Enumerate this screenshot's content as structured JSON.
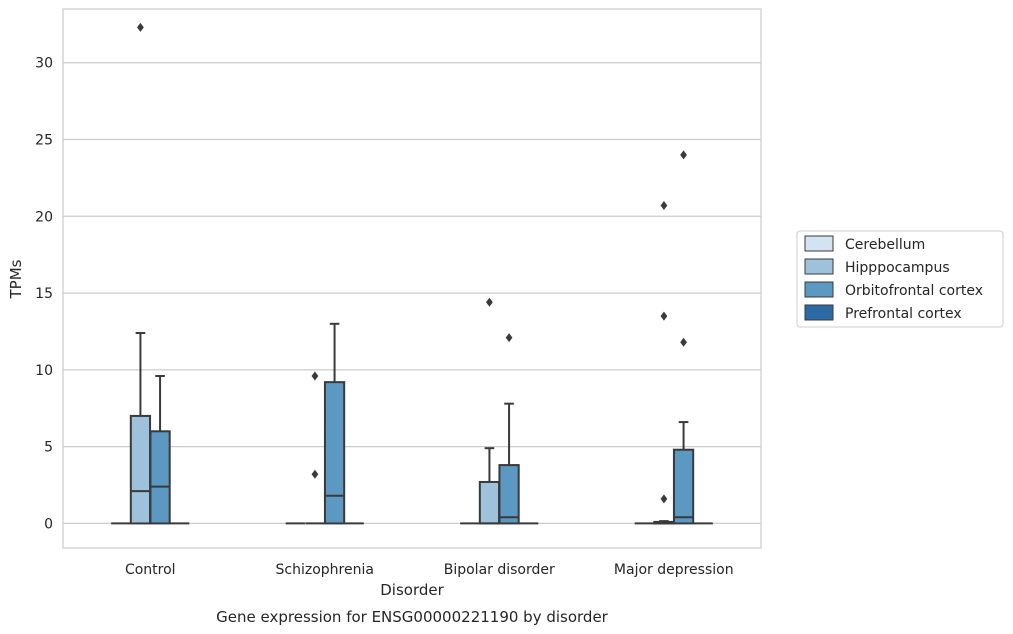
{
  "chart_data": {
    "type": "box",
    "title": "",
    "caption": "Gene expression for ENSG00000221190 by disorder",
    "xlabel": "Disorder",
    "ylabel": "TPMs",
    "ylim": [
      -1.6,
      33.5
    ],
    "yticks": [
      0,
      5,
      10,
      15,
      20,
      25,
      30
    ],
    "grid": "horizontal",
    "legend_position": "right",
    "categories": [
      "Control",
      "Schizophrenia",
      "Bipolar disorder",
      "Major depression"
    ],
    "series": [
      {
        "name": "Cerebellum",
        "color": "#d3e3f2",
        "boxes": [
          {
            "q1": 0,
            "median": 0,
            "q3": 0,
            "whisker_low": 0,
            "whisker_high": 0,
            "outliers": []
          },
          {
            "q1": 0,
            "median": 0,
            "q3": 0,
            "whisker_low": 0,
            "whisker_high": 0,
            "outliers": []
          },
          {
            "q1": 0,
            "median": 0,
            "q3": 0,
            "whisker_low": 0,
            "whisker_high": 0,
            "outliers": []
          },
          {
            "q1": 0,
            "median": 0,
            "q3": 0,
            "whisker_low": 0,
            "whisker_high": 0,
            "outliers": []
          }
        ]
      },
      {
        "name": "Hipppocampus",
        "color": "#9ec2dc",
        "boxes": [
          {
            "q1": 0,
            "median": 2.1,
            "q3": 7.0,
            "whisker_low": 0,
            "whisker_high": 12.4,
            "outliers": [
              32.3
            ]
          },
          {
            "q1": 0,
            "median": 0,
            "q3": 0,
            "whisker_low": 0,
            "whisker_high": 0,
            "outliers": [
              9.6,
              3.2
            ]
          },
          {
            "q1": 0,
            "median": 0,
            "q3": 2.7,
            "whisker_low": 0,
            "whisker_high": 4.9,
            "outliers": [
              14.4
            ]
          },
          {
            "q1": 0,
            "median": 0,
            "q3": 0.1,
            "whisker_low": 0,
            "whisker_high": 0.15,
            "outliers": [
              20.7,
              13.5,
              1.6
            ]
          }
        ]
      },
      {
        "name": "Orbitofrontal cortex",
        "color": "#5b98c2",
        "boxes": [
          {
            "q1": 0,
            "median": 2.4,
            "q3": 6.0,
            "whisker_low": 0,
            "whisker_high": 9.6,
            "outliers": []
          },
          {
            "q1": 0,
            "median": 1.8,
            "q3": 9.2,
            "whisker_low": 0,
            "whisker_high": 13.0,
            "outliers": []
          },
          {
            "q1": 0,
            "median": 0.4,
            "q3": 3.8,
            "whisker_low": 0,
            "whisker_high": 7.8,
            "outliers": [
              12.1
            ]
          },
          {
            "q1": 0,
            "median": 0.4,
            "q3": 4.8,
            "whisker_low": 0,
            "whisker_high": 6.6,
            "outliers": [
              24.0,
              11.8
            ]
          }
        ]
      },
      {
        "name": "Prefrontal cortex",
        "color": "#2c6aa6",
        "boxes": [
          {
            "q1": 0,
            "median": 0,
            "q3": 0,
            "whisker_low": 0,
            "whisker_high": 0,
            "outliers": []
          },
          {
            "q1": 0,
            "median": 0,
            "q3": 0,
            "whisker_low": 0,
            "whisker_high": 0,
            "outliers": []
          },
          {
            "q1": 0,
            "median": 0,
            "q3": 0,
            "whisker_low": 0,
            "whisker_high": 0,
            "outliers": []
          },
          {
            "q1": 0,
            "median": 0,
            "q3": 0,
            "whisker_low": 0,
            "whisker_high": 0,
            "outliers": []
          }
        ]
      }
    ]
  }
}
